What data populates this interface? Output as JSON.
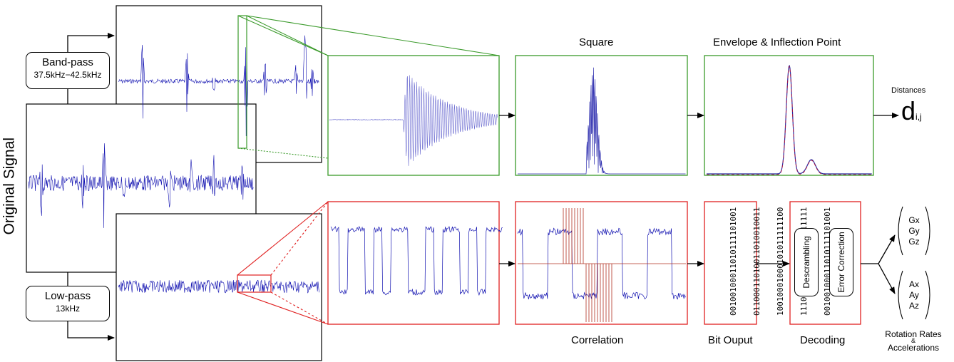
{
  "original_signal_label": "Original Signal",
  "band_pass": {
    "title": "Band-pass",
    "range": "37.5kHz−42.5kHz"
  },
  "low_pass": {
    "title": "Low-pass",
    "range": "13kHz"
  },
  "stages": {
    "square": "Square",
    "envelope": "Envelope & Inflection Point",
    "correlation": "Correlation",
    "bit_output": "Bit Ouput",
    "decoding": "Decoding"
  },
  "distances": {
    "label": "Distances",
    "symbol": "d",
    "subscript": "i,j"
  },
  "decoding_steps": [
    "Descrambling",
    "Error Correction"
  ],
  "bit_rows": [
    "00100100011010111101001",
    "01100011010011010010011",
    "10010001000101011111100",
    "11101010000100100111111",
    "00100100011010111101001"
  ],
  "gyro": [
    "Gx",
    "Gy",
    "Gz"
  ],
  "accel": [
    "Ax",
    "Ay",
    "Az"
  ],
  "outputs_label": [
    "Rotation Rates",
    "&",
    "Accelerations"
  ],
  "colors": {
    "signal": "#1010b0",
    "green_frame": "#3a9a2a",
    "red_frame": "#e02020",
    "envelope": "#c01030"
  }
}
